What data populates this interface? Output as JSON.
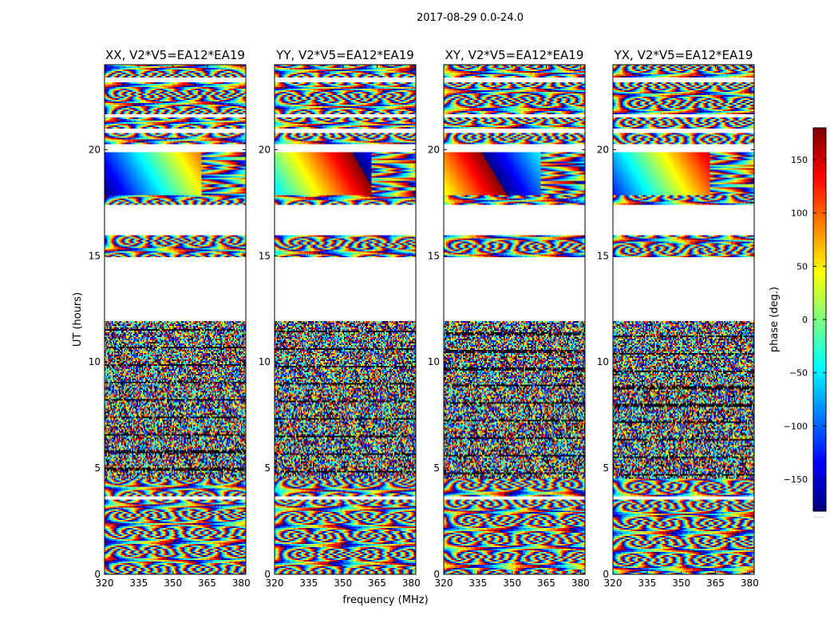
{
  "figure": {
    "suptitle": "2017-08-29 0.0-24.0",
    "ylabel": "UT (hours)",
    "xlabel": "frequency (MHz)",
    "colorbar_label": "phase (deg.)",
    "colorbar_tick_dots": "......"
  },
  "chart_data": {
    "type": "heatmap",
    "panels": [
      {
        "title": "XX, V2*V5=EA12*EA19",
        "pol": "XX"
      },
      {
        "title": "YY, V2*V5=EA12*EA19",
        "pol": "YY"
      },
      {
        "title": "XY, V2*V5=EA12*EA19",
        "pol": "XY"
      },
      {
        "title": "YX, V2*V5=EA12*EA19",
        "pol": "YX"
      }
    ],
    "x_ticks": [
      320,
      335,
      350,
      365,
      380
    ],
    "x_tick_labels": [
      "320",
      "335",
      "350",
      "365",
      "380"
    ],
    "xlim": [
      320,
      382
    ],
    "y_ticks": [
      0,
      5,
      10,
      15,
      20
    ],
    "y_tick_labels": [
      "0",
      "5",
      "10",
      "15",
      "20"
    ],
    "ylim": [
      0,
      24
    ],
    "colorbar": {
      "ticks": [
        150,
        100,
        50,
        0,
        -50,
        -100,
        -150
      ],
      "tick_labels": [
        "150",
        "100",
        "50",
        "0",
        "−50",
        "−100",
        "−150"
      ],
      "range": [
        -180,
        180
      ],
      "colormap": "jet"
    },
    "flagged_ut_ranges": [
      [
        3.55,
        3.7
      ],
      [
        11.9,
        14.9
      ],
      [
        16.0,
        17.4
      ],
      [
        19.9,
        20.25
      ],
      [
        20.8,
        21.0
      ],
      [
        21.5,
        21.7
      ],
      [
        23.2,
        23.4
      ]
    ],
    "smooth_ut_range": [
      17.85,
      19.95
    ]
  }
}
